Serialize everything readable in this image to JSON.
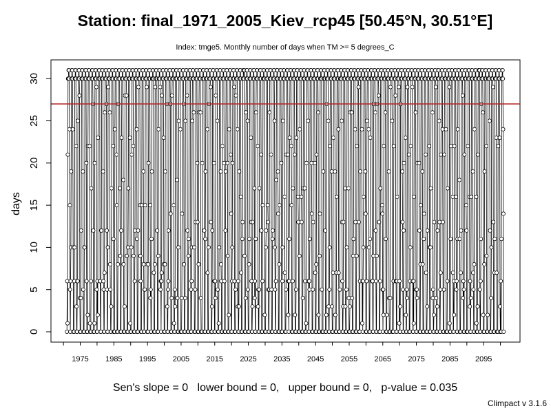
{
  "chart_data": {
    "type": "line",
    "title": "Station: final_1971_2005_Kiev_rcp45 [50.45°N, 30.51°E]",
    "subtitle": "Index: tmge5. Monthly number of days when TM >= 5 degrees_C",
    "xlabel": "",
    "ylabel": "days",
    "xlim": [
      1971,
      2100.9
    ],
    "ylim": [
      0,
      31
    ],
    "x_ticks": [
      "1975",
      "1985",
      "1995",
      "2005",
      "2015",
      "2025",
      "2035",
      "2045",
      "2055",
      "2065",
      "2075",
      "2085",
      "2095"
    ],
    "y_ticks": [
      "0",
      "5",
      "10",
      "15",
      "20",
      "25",
      "30"
    ],
    "grid": false,
    "reference_line": {
      "y": 27,
      "color": "#b22222"
    },
    "series": [
      {
        "start_year": 1971,
        "months_per_year": 12,
        "marker": "open-circle",
        "note_values_are_approximate_reading": true,
        "annual_profile": [
          0,
          0,
          4,
          20,
          30,
          30,
          31,
          31,
          30,
          25,
          6,
          0
        ]
      }
    ],
    "stats_text": "Sen's slope = 0   lower bound = 0,   upper bound = 0,   p-value = 0.035",
    "credit": "Climpact v 3.1.6",
    "colors": {
      "line": "#000000",
      "reference": "#b22222",
      "frame": "#000000"
    }
  }
}
